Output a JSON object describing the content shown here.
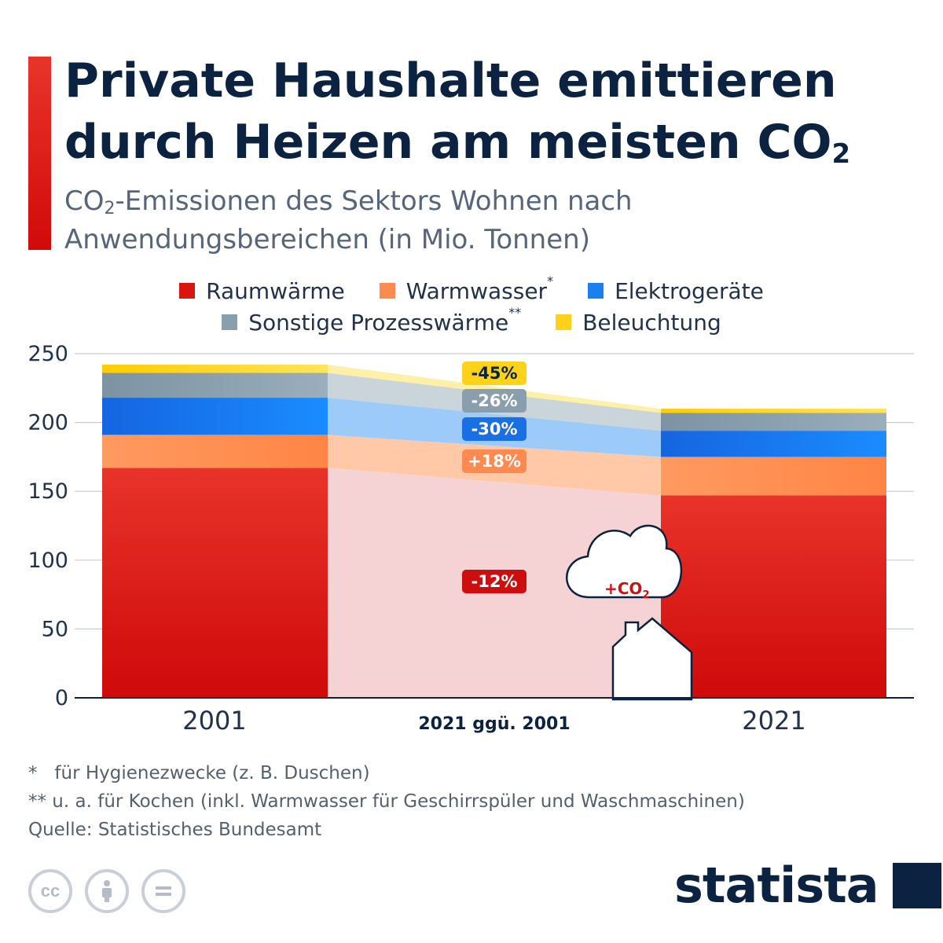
{
  "header": {
    "title_line1": "Private Haushalte emittieren",
    "title_line2": "durch Heizen am meisten CO",
    "title_sub": "2",
    "subtitle_prefix": "CO",
    "subtitle_sub": "2",
    "subtitle_rest": "-Emissionen des Sektors Wohnen nach",
    "subtitle_line2": "Anwendungsbereichen (in Mio. Tonnen)"
  },
  "legend": {
    "row1": [
      {
        "label": "Raumwärme",
        "sup": "",
        "color": "#d9150f"
      },
      {
        "label": "Warmwasser",
        "sup": "*",
        "color": "#ff8a50"
      },
      {
        "label": "Elektrogeräte",
        "sup": "",
        "color": "#1a80f0"
      }
    ],
    "row2": [
      {
        "label": "Sonstige Prozesswärme",
        "sup": "**",
        "color": "#8a9fae"
      },
      {
        "label": "Beleuchtung",
        "sup": "",
        "color": "#ffd21a"
      }
    ]
  },
  "chart_data": {
    "type": "bar",
    "stacked": true,
    "categories": [
      "2001",
      "2021"
    ],
    "series": [
      {
        "name": "Raumwärme",
        "values": [
          167,
          147
        ],
        "color": "#d9150f",
        "change": "-12%"
      },
      {
        "name": "Warmwasser",
        "values": [
          24,
          28
        ],
        "color": "#ff8a50",
        "change": "+18%"
      },
      {
        "name": "Elektrogeräte",
        "values": [
          27,
          19
        ],
        "color": "#1a80f0",
        "change": "-30%"
      },
      {
        "name": "Sonstige Prozesswärme",
        "values": [
          18,
          13
        ],
        "color": "#8a9fae",
        "change": "-26%"
      },
      {
        "name": "Beleuchtung",
        "values": [
          6,
          3
        ],
        "color": "#ffd21a",
        "change": "-45%"
      }
    ],
    "ylim": [
      0,
      250
    ],
    "yticks": [
      "0",
      "50",
      "100",
      "150",
      "200",
      "250"
    ],
    "middle_label": "2021 ggü. 2001",
    "grid": true
  },
  "illustration": {
    "cloud_label": "+CO",
    "cloud_sub": "2"
  },
  "footnotes": [
    "*   für Hygienezwecke (z. B. Duschen)",
    "** u. a. für Kochen (inkl. Warmwasser für Geschirrspüler und Waschmaschinen)",
    "Quelle: Statistisches Bundesamt"
  ],
  "brand": {
    "name": "statista"
  },
  "license_icons": [
    "cc-icon",
    "by-icon",
    "nd-icon"
  ]
}
